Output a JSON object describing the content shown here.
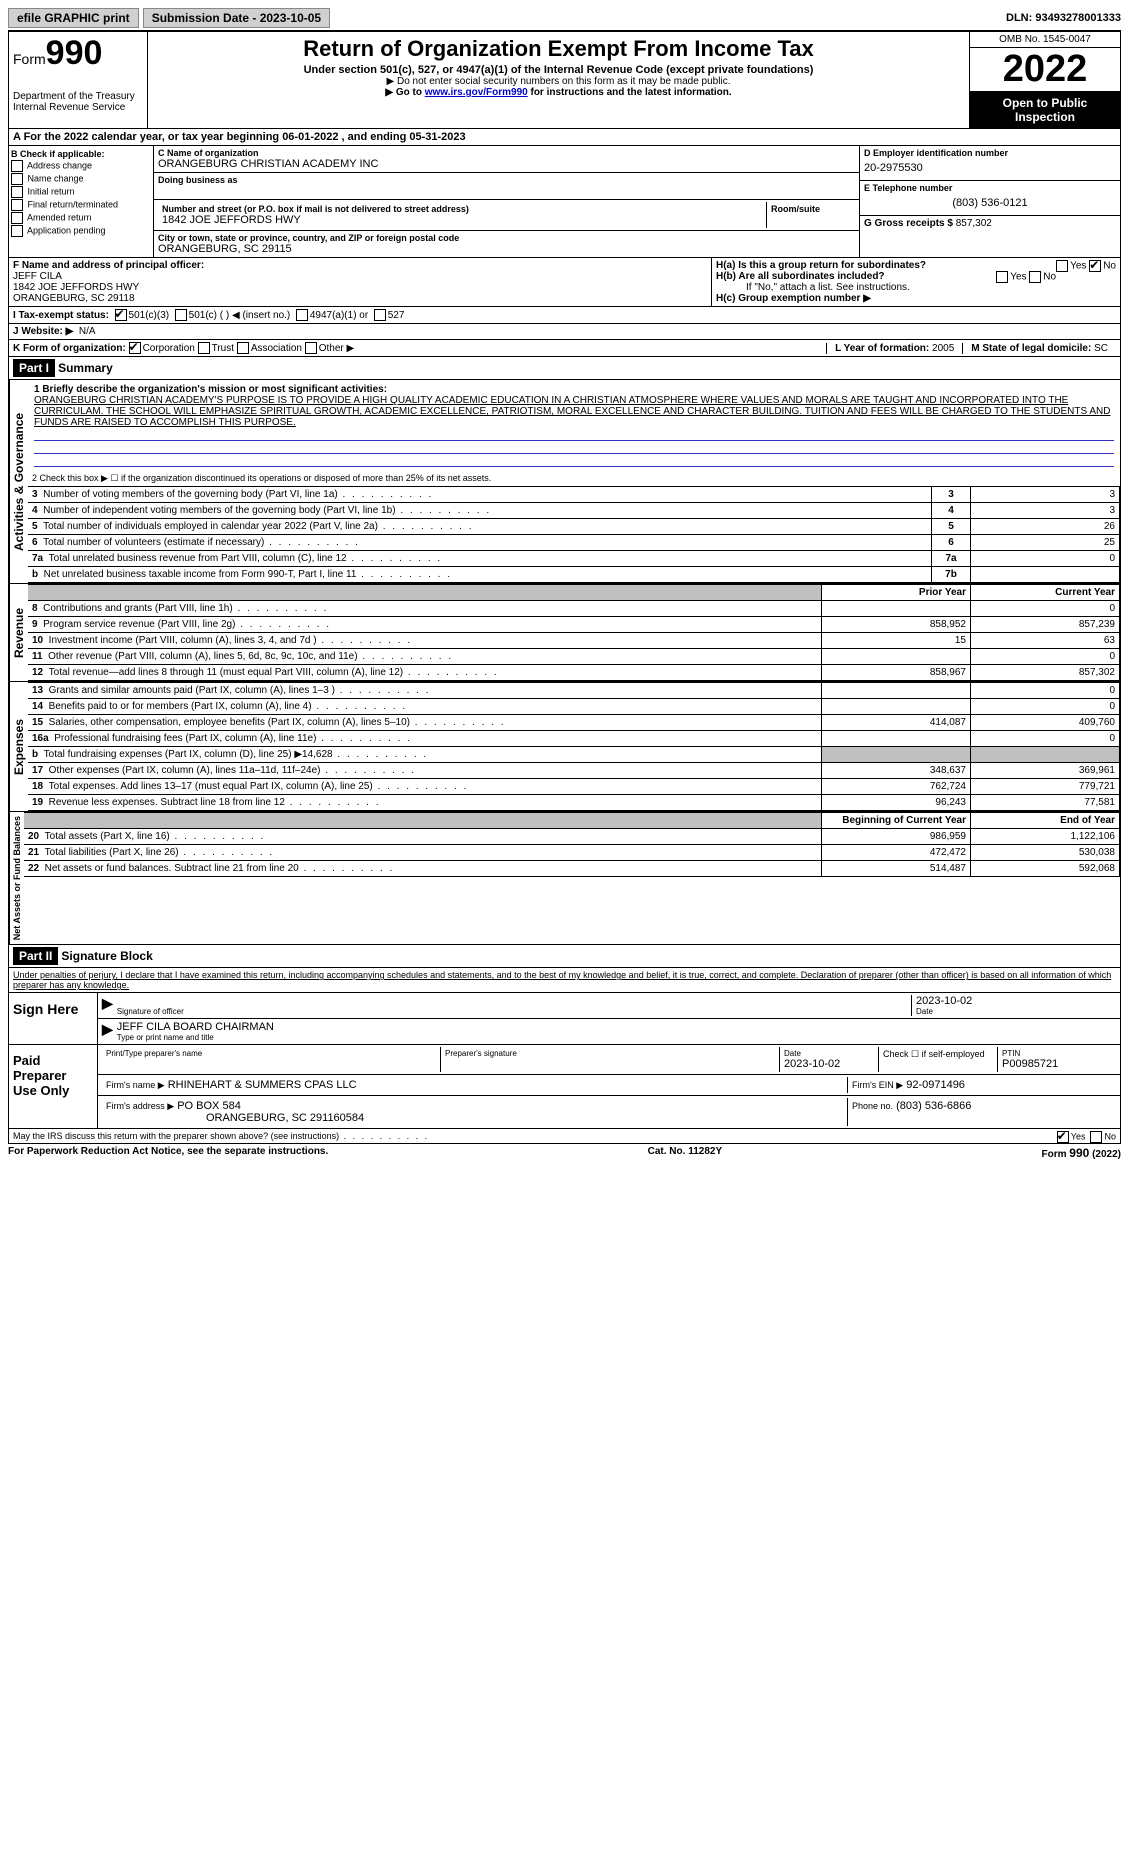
{
  "topbar": {
    "efile_label": "efile GRAPHIC print",
    "submission_label": "Submission Date - 2023-10-05",
    "dln_label": "DLN: 93493278001333"
  },
  "header": {
    "form_prefix": "Form",
    "form_number": "990",
    "dept": "Department of the Treasury Internal Revenue Service",
    "title": "Return of Organization Exempt From Income Tax",
    "subtitle": "Under section 501(c), 527, or 4947(a)(1) of the Internal Revenue Code (except private foundations)",
    "note1": "▶ Do not enter social security numbers on this form as it may be made public.",
    "note2_pre": "▶ Go to ",
    "note2_link": "www.irs.gov/Form990",
    "note2_post": " for instructions and the latest information.",
    "omb": "OMB No. 1545-0047",
    "year": "2022",
    "open": "Open to Public Inspection"
  },
  "row_a": "A For the 2022 calendar year, or tax year beginning 06-01-2022   , and ending 05-31-2023",
  "box_b": {
    "header": "B Check if applicable:",
    "items": [
      "Address change",
      "Name change",
      "Initial return",
      "Final return/terminated",
      "Amended return",
      "Application pending"
    ]
  },
  "box_c": {
    "name_label": "C Name of organization",
    "name": "ORANGEBURG CHRISTIAN ACADEMY INC",
    "dba_label": "Doing business as",
    "addr_label": "Number and street (or P.O. box if mail is not delivered to street address)",
    "room_label": "Room/suite",
    "addr": "1842 JOE JEFFORDS HWY",
    "city_label": "City or town, state or province, country, and ZIP or foreign postal code",
    "city": "ORANGEBURG, SC  29115"
  },
  "box_d": {
    "label": "D Employer identification number",
    "value": "20-2975530"
  },
  "box_e": {
    "label": "E Telephone number",
    "value": "(803) 536-0121"
  },
  "box_g": {
    "label": "G Gross receipts $",
    "value": "857,302"
  },
  "box_f": {
    "label": "F  Name and address of principal officer:",
    "name": "JEFF CILA",
    "addr1": "1842 JOE JEFFORDS HWY",
    "addr2": "ORANGEBURG, SC  29118"
  },
  "box_h": {
    "ha_label": "H(a)  Is this a group return for subordinates?",
    "hb_label": "H(b)  Are all subordinates included?",
    "hb_note": "If \"No,\" attach a list. See instructions.",
    "hc_label": "H(c)  Group exemption number ▶",
    "yes": "Yes",
    "no": "No"
  },
  "row_i": {
    "label": "I   Tax-exempt status:",
    "opt1": "501(c)(3)",
    "opt2": "501(c) (  ) ◀ (insert no.)",
    "opt3": "4947(a)(1) or",
    "opt4": "527"
  },
  "row_j": {
    "label": "J   Website: ▶",
    "value": "N/A"
  },
  "row_k": {
    "label": "K Form of organization:",
    "opts": [
      "Corporation",
      "Trust",
      "Association",
      "Other ▶"
    ]
  },
  "row_l": {
    "label": "L Year of formation:",
    "value": "2005"
  },
  "row_m": {
    "label": "M State of legal domicile:",
    "value": "SC"
  },
  "part1": {
    "header": "Part I",
    "title": "Summary",
    "l1_label": "1  Briefly describe the organization's mission or most significant activities:",
    "mission": "ORANGEBURG CHRISTIAN ACADEMY'S PURPOSE IS TO PROVIDE A HIGH QUALITY ACADEMIC EDUCATION IN A CHRISTIAN ATMOSPHERE WHERE VALUES AND MORALS ARE TAUGHT AND INCORPORATED INTO THE CURRICULAM. THE SCHOOL WILL EMPHASIZE SPIRITUAL GROWTH, ACADEMIC EXCELLENCE, PATRIOTISM, MORAL EXCELLENCE AND CHARACTER BUILDING. TUITION AND FEES WILL BE CHARGED TO THE STUDENTS AND FUNDS ARE RAISED TO ACCOMPLISH THIS PURPOSE.",
    "vert_ag": "Activities & Governance",
    "l2": "2   Check this box ▶ ☐  if the organization discontinued its operations or disposed of more than 25% of its net assets.",
    "rows_ag": [
      {
        "n": "3",
        "desc": "Number of voting members of the governing body (Part VI, line 1a)",
        "box": "3",
        "val": "3"
      },
      {
        "n": "4",
        "desc": "Number of independent voting members of the governing body (Part VI, line 1b)",
        "box": "4",
        "val": "3"
      },
      {
        "n": "5",
        "desc": "Total number of individuals employed in calendar year 2022 (Part V, line 2a)",
        "box": "5",
        "val": "26"
      },
      {
        "n": "6",
        "desc": "Total number of volunteers (estimate if necessary)",
        "box": "6",
        "val": "25"
      },
      {
        "n": "7a",
        "desc": "Total unrelated business revenue from Part VIII, column (C), line 12",
        "box": "7a",
        "val": "0"
      },
      {
        "n": "b",
        "desc": "Net unrelated business taxable income from Form 990-T, Part I, line 11",
        "box": "7b",
        "val": ""
      }
    ],
    "vert_rev": "Revenue",
    "col_prior": "Prior Year",
    "col_curr": "Current Year",
    "rows_rev": [
      {
        "n": "8",
        "desc": "Contributions and grants (Part VIII, line 1h)",
        "p": "",
        "c": "0"
      },
      {
        "n": "9",
        "desc": "Program service revenue (Part VIII, line 2g)",
        "p": "858,952",
        "c": "857,239"
      },
      {
        "n": "10",
        "desc": "Investment income (Part VIII, column (A), lines 3, 4, and 7d )",
        "p": "15",
        "c": "63"
      },
      {
        "n": "11",
        "desc": "Other revenue (Part VIII, column (A), lines 5, 6d, 8c, 9c, 10c, and 11e)",
        "p": "",
        "c": "0"
      },
      {
        "n": "12",
        "desc": "Total revenue—add lines 8 through 11 (must equal Part VIII, column (A), line 12)",
        "p": "858,967",
        "c": "857,302"
      }
    ],
    "vert_exp": "Expenses",
    "rows_exp": [
      {
        "n": "13",
        "desc": "Grants and similar amounts paid (Part IX, column (A), lines 1–3 )",
        "p": "",
        "c": "0"
      },
      {
        "n": "14",
        "desc": "Benefits paid to or for members (Part IX, column (A), line 4)",
        "p": "",
        "c": "0"
      },
      {
        "n": "15",
        "desc": "Salaries, other compensation, employee benefits (Part IX, column (A), lines 5–10)",
        "p": "414,087",
        "c": "409,760"
      },
      {
        "n": "16a",
        "desc": "Professional fundraising fees (Part IX, column (A), line 11e)",
        "p": "",
        "c": "0"
      },
      {
        "n": "b",
        "desc": "Total fundraising expenses (Part IX, column (D), line 25) ▶14,628",
        "p": "GREY",
        "c": "GREY"
      },
      {
        "n": "17",
        "desc": "Other expenses (Part IX, column (A), lines 11a–11d, 11f–24e)",
        "p": "348,637",
        "c": "369,961"
      },
      {
        "n": "18",
        "desc": "Total expenses. Add lines 13–17 (must equal Part IX, column (A), line 25)",
        "p": "762,724",
        "c": "779,721"
      },
      {
        "n": "19",
        "desc": "Revenue less expenses. Subtract line 18 from line 12",
        "p": "96,243",
        "c": "77,581"
      }
    ],
    "vert_net": "Net Assets or Fund Balances",
    "col_beg": "Beginning of Current Year",
    "col_end": "End of Year",
    "rows_net": [
      {
        "n": "20",
        "desc": "Total assets (Part X, line 16)",
        "p": "986,959",
        "c": "1,122,106"
      },
      {
        "n": "21",
        "desc": "Total liabilities (Part X, line 26)",
        "p": "472,472",
        "c": "530,038"
      },
      {
        "n": "22",
        "desc": "Net assets or fund balances. Subtract line 21 from line 20",
        "p": "514,487",
        "c": "592,068"
      }
    ]
  },
  "part2": {
    "header": "Part II",
    "title": "Signature Block",
    "penal": "Under penalties of perjury, I declare that I have examined this return, including accompanying schedules and statements, and to the best of my knowledge and belief, it is true, correct, and complete. Declaration of preparer (other than officer) is based on all information of which preparer has any knowledge.",
    "sign_here": "Sign Here",
    "sig_label": "Signature of officer",
    "date_val": "2023-10-02",
    "date_label": "Date",
    "name_val": "JEFF CILA  BOARD CHAIRMAN",
    "name_label": "Type or print name and title",
    "paid": "Paid Preparer Use Only",
    "prep_name_label": "Print/Type preparer's name",
    "prep_sig_label": "Preparer's signature",
    "prep_date_label": "Date",
    "prep_date": "2023-10-02",
    "self_emp": "Check ☐ if self-employed",
    "ptin_label": "PTIN",
    "ptin": "P00985721",
    "firm_name_label": "Firm's name    ▶",
    "firm_name": "RHINEHART & SUMMERS CPAS LLC",
    "firm_ein_label": "Firm's EIN ▶",
    "firm_ein": "92-0971496",
    "firm_addr_label": "Firm's address ▶",
    "firm_addr1": "PO BOX 584",
    "firm_addr2": "ORANGEBURG, SC  291160584",
    "phone_label": "Phone no.",
    "phone": "(803) 536-6866",
    "may_irs": "May the IRS discuss this return with the preparer shown above? (see instructions)",
    "yes": "Yes",
    "no": "No"
  },
  "footer": {
    "left": "For Paperwork Reduction Act Notice, see the separate instructions.",
    "mid": "Cat. No. 11282Y",
    "right": "Form 990 (2022)"
  }
}
